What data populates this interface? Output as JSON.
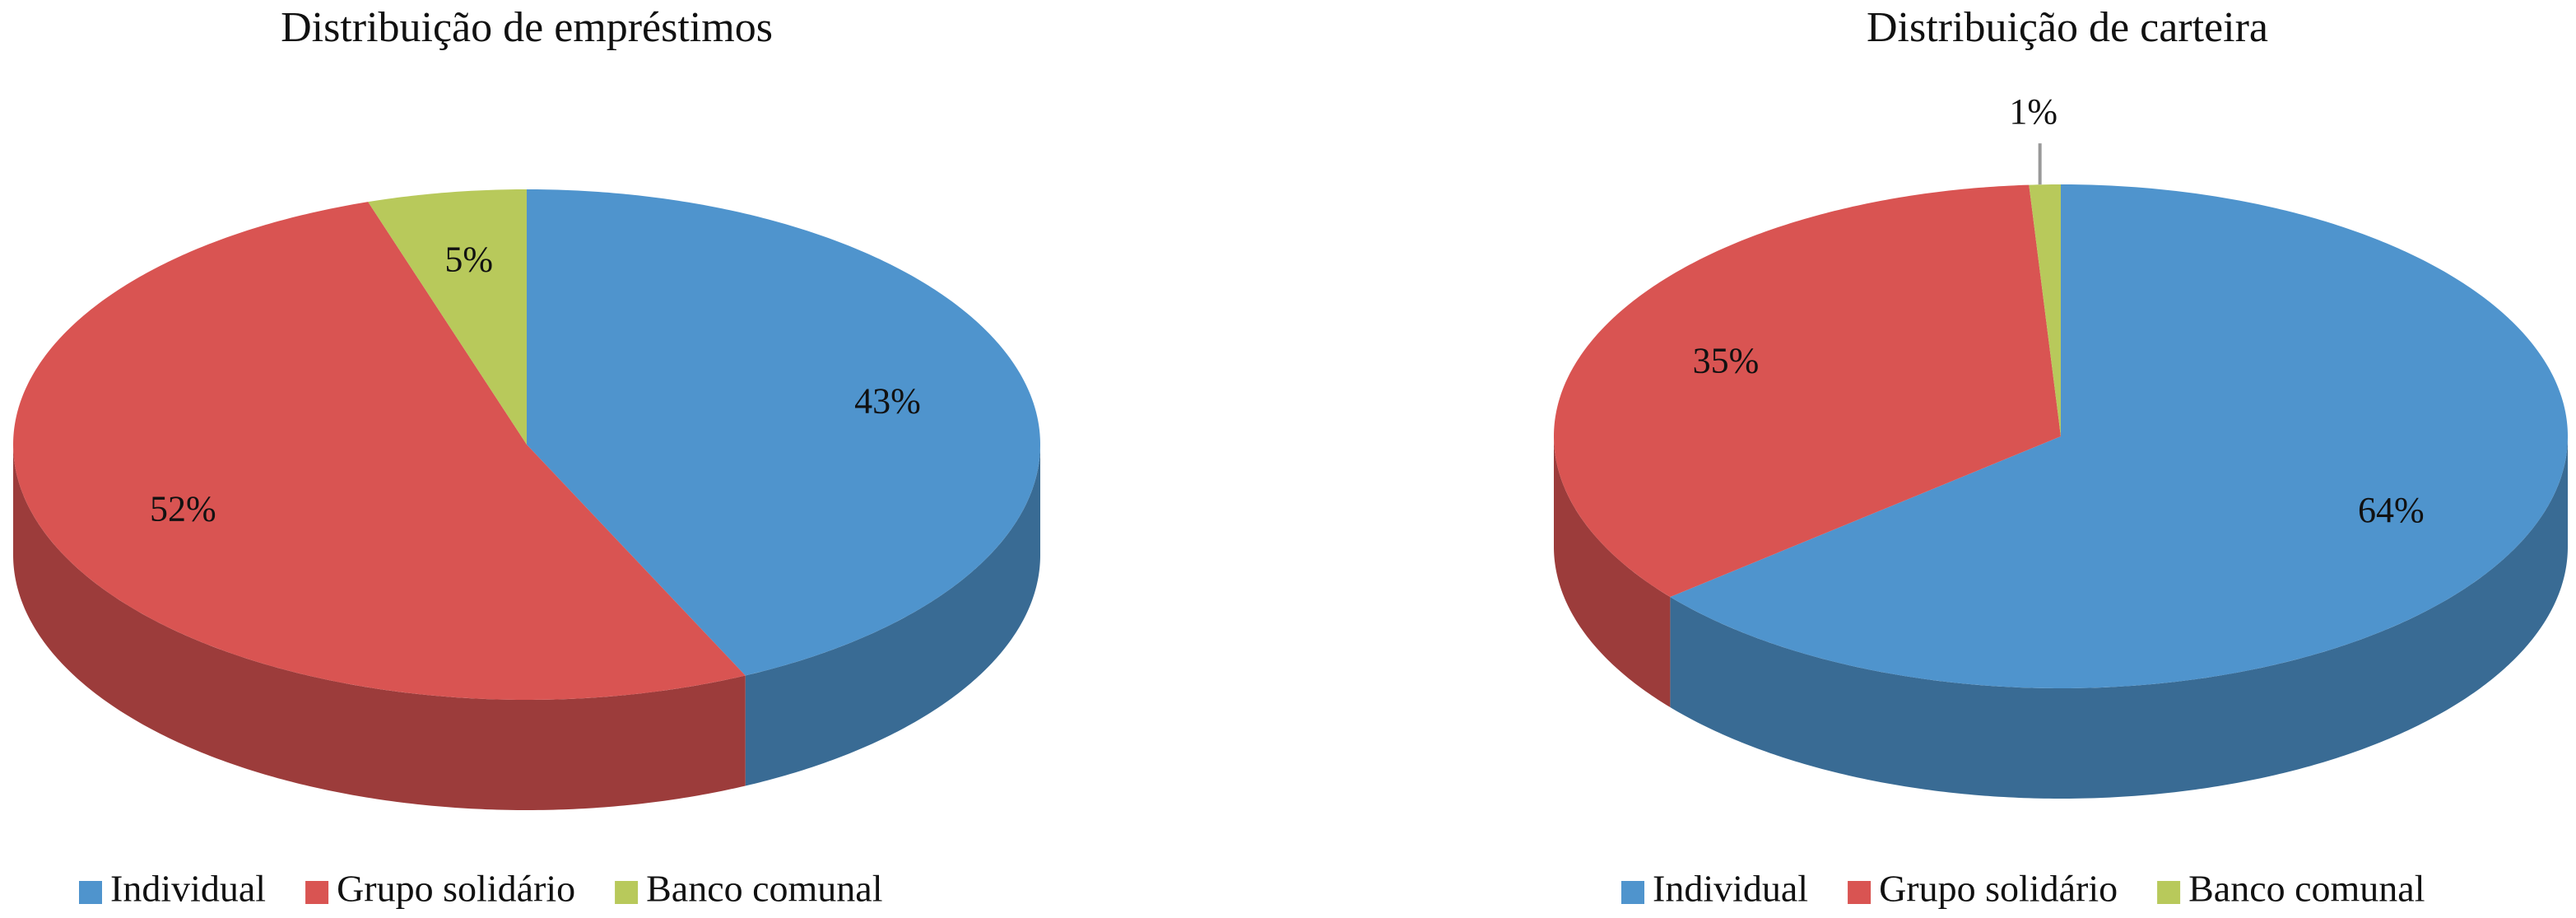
{
  "chart_data": [
    {
      "type": "pie",
      "title": "Distribuição de empréstimos",
      "categories": [
        "Individual",
        "Grupo solidário",
        "Banco comunal"
      ],
      "values": [
        43,
        52,
        5
      ],
      "value_labels": [
        "43%",
        "52%",
        "5%"
      ],
      "colors": [
        "#4f94cd",
        "#d95452",
        "#b8c95b"
      ]
    },
    {
      "type": "pie",
      "title": "Distribuição de carteira",
      "categories": [
        "Individual",
        "Grupo solidário",
        "Banco comunal"
      ],
      "values": [
        64,
        35,
        1
      ],
      "value_labels": [
        "64%",
        "35%",
        "1%"
      ],
      "colors": [
        "#4f94cd",
        "#d95452",
        "#b8c95b"
      ]
    }
  ]
}
